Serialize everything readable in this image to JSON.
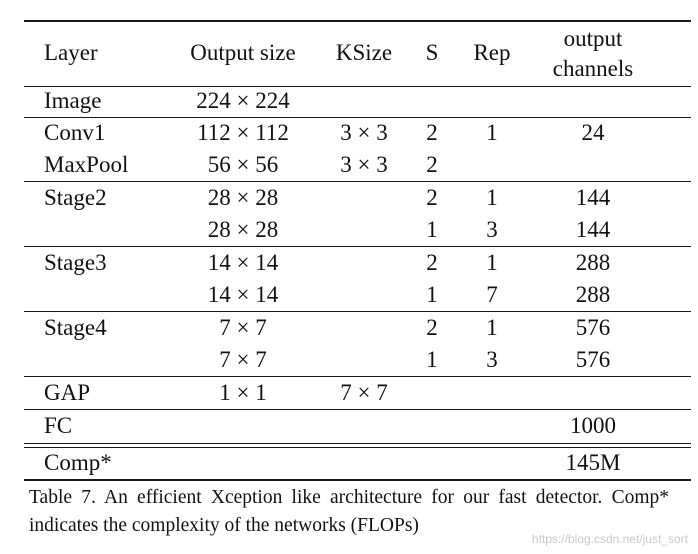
{
  "table": {
    "headers": {
      "layer": "Layer",
      "output_size": "Output size",
      "ksize": "KSize",
      "s": "S",
      "rep": "Rep",
      "channels_line1": "output",
      "channels_line2": "channels"
    },
    "rows": [
      {
        "layer": "Image",
        "output_size": "224 × 224",
        "ksize": "",
        "s": "",
        "rep": "",
        "channels": ""
      },
      {
        "layer": "Conv1",
        "output_size": "112 × 112",
        "ksize": "3 × 3",
        "s": "2",
        "rep": "1",
        "channels": "24"
      },
      {
        "layer": "MaxPool",
        "output_size": "56 × 56",
        "ksize": "3 × 3",
        "s": "2",
        "rep": "",
        "channels": ""
      },
      {
        "layer": "Stage2",
        "output_size": "28 × 28",
        "ksize": "",
        "s": "2",
        "rep": "1",
        "channels": "144"
      },
      {
        "layer": "",
        "output_size": "28 × 28",
        "ksize": "",
        "s": "1",
        "rep": "3",
        "channels": "144"
      },
      {
        "layer": "Stage3",
        "output_size": "14 × 14",
        "ksize": "",
        "s": "2",
        "rep": "1",
        "channels": "288"
      },
      {
        "layer": "",
        "output_size": "14 × 14",
        "ksize": "",
        "s": "1",
        "rep": "7",
        "channels": "288"
      },
      {
        "layer": "Stage4",
        "output_size": "7 × 7",
        "ksize": "",
        "s": "2",
        "rep": "1",
        "channels": "576"
      },
      {
        "layer": "",
        "output_size": "7 × 7",
        "ksize": "",
        "s": "1",
        "rep": "3",
        "channels": "576"
      },
      {
        "layer": "GAP",
        "output_size": "1 × 1",
        "ksize": "7 × 7",
        "s": "",
        "rep": "",
        "channels": ""
      },
      {
        "layer": "FC",
        "output_size": "",
        "ksize": "",
        "s": "",
        "rep": "",
        "channels": "1000"
      },
      {
        "layer": "Comp*",
        "output_size": "",
        "ksize": "",
        "s": "",
        "rep": "",
        "channels": "145M"
      }
    ]
  },
  "caption": "Table 7. An efficient Xception like architecture for our fast detector. Comp* indicates the complexity of the networks (FLOPs)",
  "watermark": "https://blog.csdn.net/just_sort"
}
